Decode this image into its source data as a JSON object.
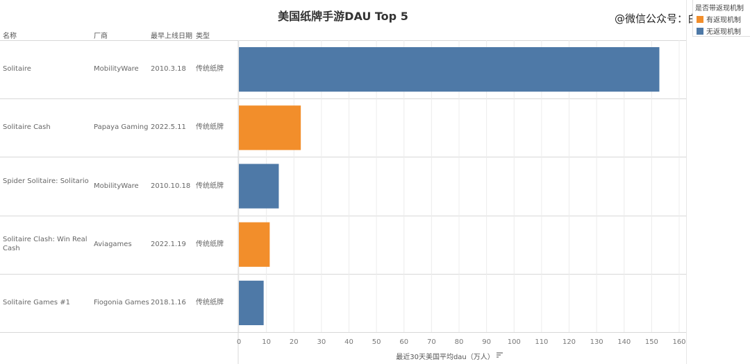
{
  "watermark": "@微信公众号：白鲸出海",
  "legend": {
    "title": "是否带返现机制",
    "items": [
      {
        "label": "有返现机制",
        "color": "#f28e2b"
      },
      {
        "label": "无返现机制",
        "color": "#4e79a7"
      }
    ]
  },
  "table": {
    "headers": [
      "名称",
      "厂商",
      "最早上线日期",
      "类型"
    ],
    "rows": [
      {
        "name": "Solitaire",
        "vendor": "MobilityWare",
        "date": "2010.3.18",
        "type": "传统纸牌"
      },
      {
        "name": "Solitaire Cash",
        "vendor": "Papaya Gaming",
        "date": "2022.5.11",
        "type": "传统纸牌"
      },
      {
        "name": "Spider Solitaire: Solitario",
        "vendor": "MobilityWare",
        "date": "2010.10.18",
        "type": "传统纸牌"
      },
      {
        "name": "Solitaire Clash: Win Real Cash",
        "vendor": "Aviagames",
        "date": "2022.1.19",
        "type": "传统纸牌"
      },
      {
        "name": "Solitaire Games #1",
        "vendor": "Fiogonia Games",
        "date": "2018.1.16",
        "type": "传统纸牌"
      }
    ]
  },
  "chart_data": {
    "type": "bar",
    "orientation": "horizontal",
    "title": "美国纸牌手游DAU Top 5",
    "xlabel": "最近30天美国平均dau（万人）",
    "ylabel": "",
    "xlim": [
      0,
      160
    ],
    "xticks": [
      0,
      10,
      20,
      30,
      40,
      50,
      60,
      70,
      80,
      90,
      100,
      110,
      120,
      130,
      140,
      150,
      160
    ],
    "grid": true,
    "legend_position": "top-right",
    "categories": [
      "Solitaire",
      "Solitaire Cash",
      "Spider Solitaire: Solitario",
      "Solitaire Clash: Win Real Cash",
      "Solitaire Games #1"
    ],
    "values": [
      152.8,
      22.5,
      14.5,
      11.2,
      9.0
    ],
    "series_membership": [
      "无返现机制",
      "有返现机制",
      "无返现机制",
      "有返现机制",
      "无返现机制"
    ]
  }
}
